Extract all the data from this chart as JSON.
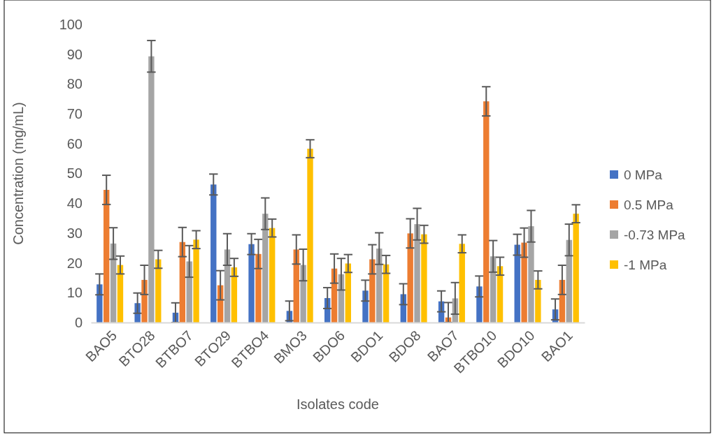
{
  "chart_data": {
    "type": "bar",
    "xlabel": "Isolates code",
    "ylabel": "Concentration (mg/mL)",
    "categories": [
      "BAO5",
      "BTO28",
      "BTBO7",
      "BTO29",
      "BTBO4",
      "BMO3",
      "BDO6",
      "BDO1",
      "BDO8",
      "BAO7",
      "BTBO10",
      "BDO10",
      "BAO1"
    ],
    "ylim": [
      0,
      100
    ],
    "yticks": [
      0,
      10,
      20,
      30,
      40,
      50,
      60,
      70,
      80,
      90,
      100
    ],
    "grid": false,
    "legend": "right",
    "series": [
      {
        "name": "0 MPa",
        "color": "#4472c4",
        "values": [
          12.8,
          6.5,
          3.3,
          46.3,
          26.3,
          3.9,
          8.2,
          10.7,
          9.5,
          7.1,
          12.1,
          26.1,
          4.4
        ],
        "errors": [
          3.5,
          3.4,
          3.3,
          3.5,
          3.5,
          3.3,
          3.5,
          3.5,
          3.5,
          3.5,
          3.5,
          3.5,
          3.5
        ]
      },
      {
        "name": "0.5 MPa",
        "color": "#ed7d31",
        "values": [
          44.5,
          14.3,
          27,
          12.5,
          23,
          24.5,
          18.1,
          21.2,
          29.9,
          1.7,
          74.2,
          26.8,
          14.3
        ],
        "errors": [
          4.9,
          4.9,
          4.9,
          4.9,
          4.9,
          4.9,
          4.9,
          4.9,
          4.9,
          [
            0,
            6.7
          ],
          4.9,
          4.9,
          4.9
        ]
      },
      {
        "name": "-0.73 MPa",
        "color": "#a5a5a5",
        "values": [
          26.5,
          89.3,
          20.5,
          24.5,
          36.5,
          19.3,
          16.2,
          24.8,
          33,
          8.1,
          22.2,
          32.3,
          27.7
        ],
        "errors": [
          5.3,
          5.3,
          5.3,
          5.3,
          5.3,
          5.3,
          5.3,
          5.3,
          5.3,
          5.3,
          5.3,
          5.3,
          5.3
        ]
      },
      {
        "name": "-1 MPa",
        "color": "#ffc000",
        "values": [
          19.3,
          21.2,
          27.8,
          18.5,
          31.7,
          58.3,
          19.8,
          19.5,
          29.6,
          26.4,
          18.9,
          14.3,
          36.5
        ],
        "errors": [
          3,
          3,
          3,
          3,
          3,
          3,
          3,
          3,
          3,
          3,
          3,
          3,
          3
        ]
      }
    ]
  }
}
